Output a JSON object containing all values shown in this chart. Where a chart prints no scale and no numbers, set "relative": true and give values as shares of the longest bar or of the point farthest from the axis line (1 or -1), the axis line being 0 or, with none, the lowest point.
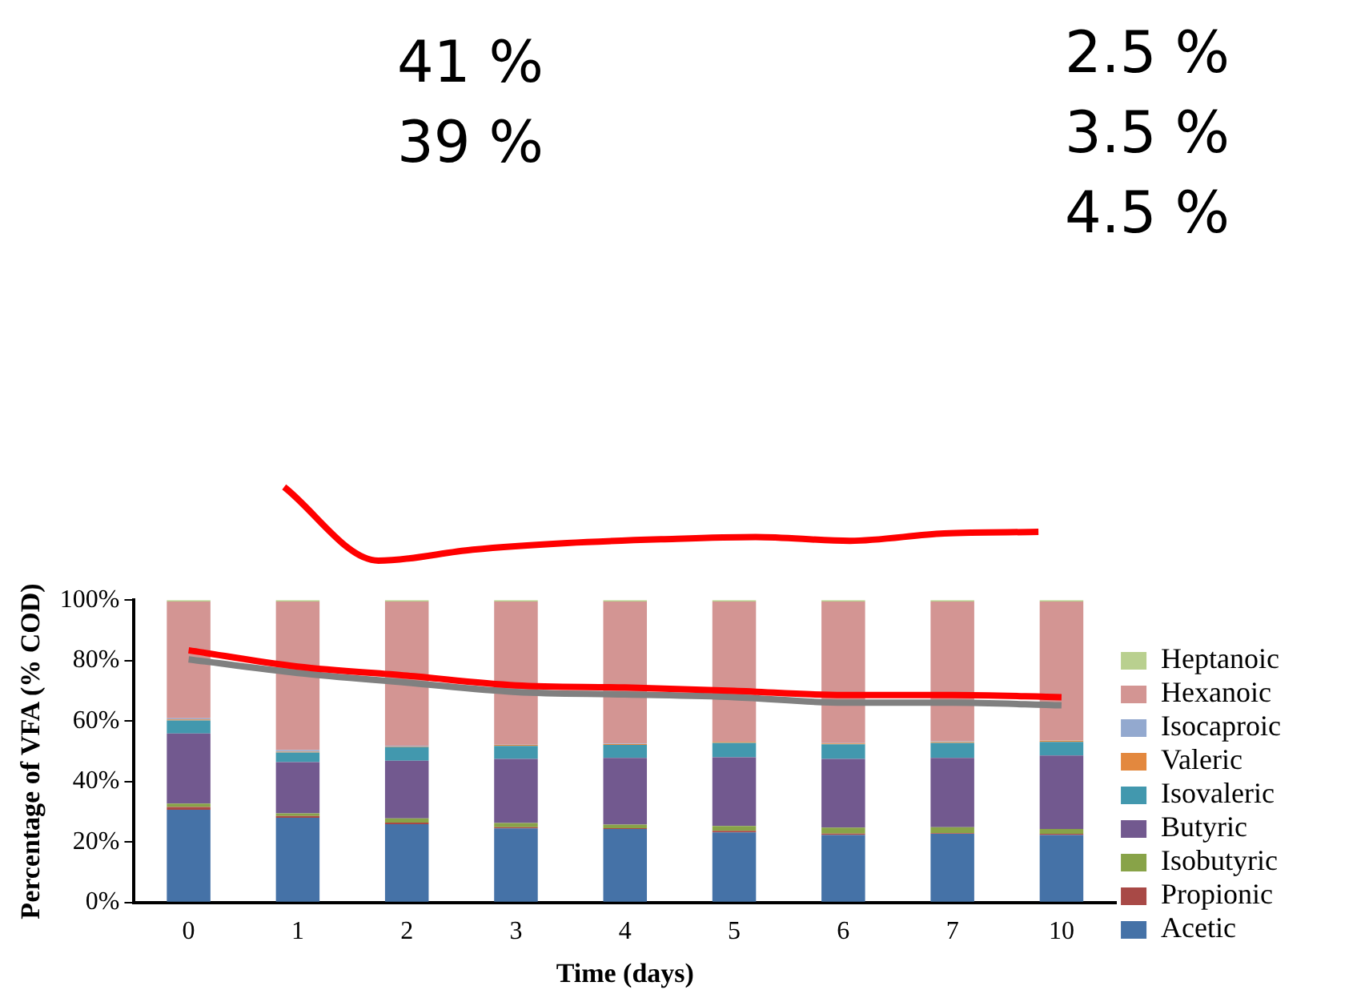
{
  "chart_data": [
    {
      "type": "bar",
      "stacked": true,
      "xlabel": "Time (days)",
      "ylabel": "Percentage of VFA (% COD)",
      "categories": [
        "0",
        "1",
        "2",
        "3",
        "4",
        "5",
        "6",
        "7",
        "10"
      ],
      "ylim": [
        0,
        100
      ],
      "yticks": [
        {
          "value": 0,
          "label": "0%"
        },
        {
          "value": 20,
          "label": "20%"
        },
        {
          "value": 40,
          "label": "40%"
        },
        {
          "value": 60,
          "label": "60%"
        },
        {
          "value": 80,
          "label": "80%"
        },
        {
          "value": 100,
          "label": "100%"
        }
      ],
      "legend": "right",
      "grid": false,
      "series": [
        {
          "name": "Acetic",
          "color": "#4572a7",
          "values": [
            30.7,
            28.0,
            25.9,
            24.5,
            24.3,
            23.2,
            22.3,
            22.7,
            22.3
          ]
        },
        {
          "name": "Propionic",
          "color": "#a84946",
          "values": [
            0.9,
            0.6,
            0.5,
            0.4,
            0.3,
            0.5,
            0.5,
            0.2,
            0.4
          ]
        },
        {
          "name": "Isobutyric",
          "color": "#88a348",
          "values": [
            1.1,
            0.9,
            1.4,
            1.4,
            1.2,
            1.6,
            2.0,
            2.0,
            1.6
          ]
        },
        {
          "name": "Butyric",
          "color": "#72598f",
          "values": [
            23.2,
            16.9,
            19.1,
            21.2,
            22.0,
            22.7,
            22.7,
            22.9,
            24.3
          ]
        },
        {
          "name": "Isovaleric",
          "color": "#4298ae",
          "values": [
            4.3,
            3.2,
            4.5,
            4.3,
            4.3,
            4.8,
            4.8,
            5.0,
            4.5
          ]
        },
        {
          "name": "Valeric",
          "color": "#e3883e",
          "values": [
            0.3,
            0.3,
            0.2,
            0.3,
            0.3,
            0.3,
            0.3,
            0.3,
            0.4
          ]
        },
        {
          "name": "Isocaproic",
          "color": "#93a9cf",
          "values": [
            0.4,
            0.5,
            0.2,
            0.1,
            0.1,
            0.1,
            0.1,
            0.2,
            0.1
          ]
        },
        {
          "name": "Hexanoic",
          "color": "#d39593",
          "values": [
            38.6,
            49.1,
            47.7,
            47.3,
            47.0,
            46.3,
            46.8,
            46.2,
            45.9
          ]
        },
        {
          "name": "Heptanoic",
          "color": "#b9d08f",
          "values": [
            0.5,
            0.5,
            0.5,
            0.5,
            0.5,
            0.5,
            0.5,
            0.5,
            0.5
          ]
        },
        {
          "type": "line",
          "color": "#ff0000",
          "values": [
            83.4,
            78.0,
            75.0,
            71.8,
            71.1,
            70.0,
            68.6,
            68.6,
            67.9
          ]
        },
        {
          "type": "line",
          "color": "#808080",
          "values": [
            80.4,
            75.9,
            72.7,
            69.6,
            68.8,
            67.9,
            66.1,
            66.1,
            65.2
          ]
        }
      ]
    },
    {
      "type": "line",
      "relative": true,
      "legend": false,
      "grid": false,
      "categories": [
        null,
        null,
        null,
        null,
        null,
        null,
        null,
        null,
        null
      ],
      "annotations": [
        "41 %",
        "39 %",
        "2.5 %",
        "3.5 %",
        "4.5 %"
      ],
      "series": [
        {
          "color": "#ff0000",
          "values": [
            1,
            0,
            0.15,
            0.24,
            0.29,
            0.32,
            0.27,
            0.37,
            0.39
          ]
        }
      ]
    }
  ]
}
